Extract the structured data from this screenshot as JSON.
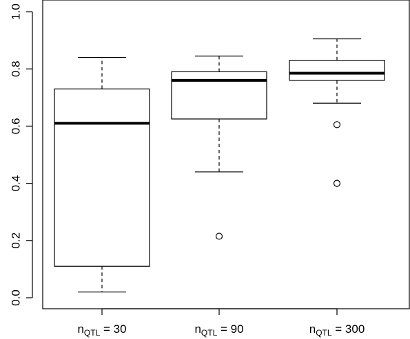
{
  "chart_data": {
    "type": "boxplot",
    "title": "",
    "xlabel": "",
    "ylabel": "",
    "ylim": [
      0,
      1.0
    ],
    "yticks": [
      "0.0",
      "0.2",
      "0.4",
      "0.6",
      "0.8",
      "1.0"
    ],
    "grid": false,
    "legend": "none",
    "categories": [
      {
        "base": "n",
        "sub": "QTL",
        "suffix": " = 30"
      },
      {
        "base": "n",
        "sub": "QTL",
        "suffix": " = 90"
      },
      {
        "base": "n",
        "sub": "QTL",
        "suffix": " = 300"
      }
    ],
    "boxes": [
      {
        "whisker_low": 0.02,
        "q1": 0.11,
        "median": 0.61,
        "q3": 0.73,
        "whisker_high": 0.84,
        "outliers": []
      },
      {
        "whisker_low": 0.44,
        "q1": 0.625,
        "median": 0.76,
        "q3": 0.79,
        "whisker_high": 0.845,
        "outliers": [
          0.215
        ]
      },
      {
        "whisker_low": 0.68,
        "q1": 0.76,
        "median": 0.785,
        "q3": 0.83,
        "whisker_high": 0.905,
        "outliers": [
          0.605,
          0.4
        ]
      }
    ]
  }
}
